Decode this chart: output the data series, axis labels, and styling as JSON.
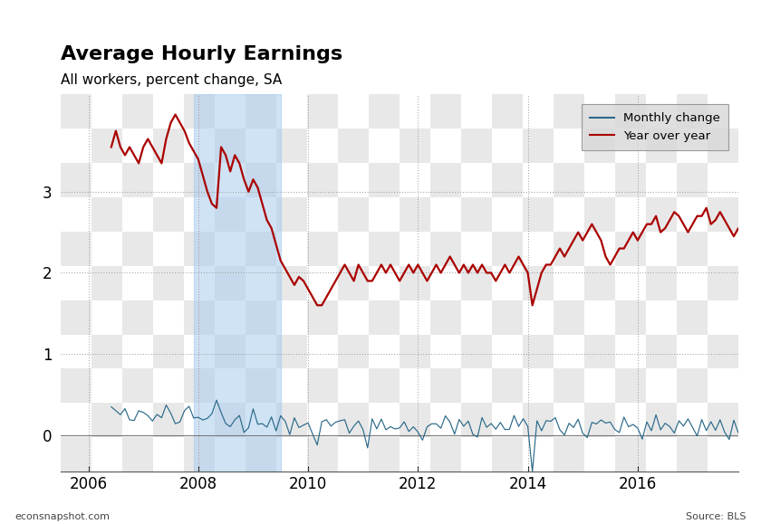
{
  "title": "Average Hourly Earnings",
  "subtitle": "All workers, percent change, SA",
  "footer_left": "econsnapshot.com",
  "footer_right": "Source: BLS",
  "legend_labels": [
    "Monthly change",
    "Year over year"
  ],
  "line_monthly_color": "#2b6a8a",
  "line_yoy_color": "#aa0000",
  "recession_start": 2007.917,
  "recession_end": 2009.5,
  "recession_color": "#aaccee",
  "recession_alpha": 0.55,
  "yticks": [
    0,
    1,
    2,
    3
  ],
  "ylim": [
    -0.45,
    4.2
  ],
  "xlim": [
    2005.5,
    2017.83
  ],
  "xticks": [
    2006,
    2008,
    2010,
    2012,
    2014,
    2016
  ],
  "grid_color": "#999999",
  "checker_light": "#e8e8e8",
  "checker_dark": "#ffffff",
  "yoy_t_start": 2006.417,
  "monthly_t_start": 2006.417,
  "yoy": [
    3.55,
    3.75,
    3.55,
    3.45,
    3.55,
    3.45,
    3.35,
    3.55,
    3.65,
    3.55,
    3.45,
    3.35,
    3.65,
    3.85,
    3.95,
    3.85,
    3.75,
    3.6,
    3.5,
    3.4,
    3.2,
    3.0,
    2.85,
    2.8,
    3.55,
    3.45,
    3.25,
    3.45,
    3.35,
    3.15,
    3.0,
    3.15,
    3.05,
    2.85,
    2.65,
    2.55,
    2.35,
    2.15,
    2.05,
    1.95,
    1.85,
    1.95,
    1.9,
    1.8,
    1.7,
    1.6,
    1.6,
    1.7,
    1.8,
    1.9,
    2.0,
    2.1,
    2.0,
    1.9,
    2.1,
    2.0,
    1.9,
    1.9,
    2.0,
    2.1,
    2.0,
    2.1,
    2.0,
    1.9,
    2.0,
    2.1,
    2.0,
    2.1,
    2.0,
    1.9,
    2.0,
    2.1,
    2.0,
    2.1,
    2.2,
    2.1,
    2.0,
    2.1,
    2.0,
    2.1,
    2.0,
    2.1,
    2.0,
    2.0,
    1.9,
    2.0,
    2.1,
    2.0,
    2.1,
    2.2,
    2.1,
    2.0,
    1.6,
    1.8,
    2.0,
    2.1,
    2.1,
    2.2,
    2.3,
    2.2,
    2.3,
    2.4,
    2.5,
    2.4,
    2.5,
    2.6,
    2.5,
    2.4,
    2.2,
    2.1,
    2.2,
    2.3,
    2.3,
    2.4,
    2.5,
    2.4,
    2.5,
    2.6,
    2.6,
    2.7,
    2.5,
    2.55,
    2.65,
    2.75,
    2.7,
    2.6,
    2.5,
    2.6,
    2.7,
    2.7,
    2.8,
    2.6,
    2.65,
    2.75,
    2.65,
    2.55,
    2.45,
    2.55,
    2.45,
    2.5
  ],
  "monthly": [
    0.28,
    0.32,
    0.25,
    0.31,
    0.22,
    0.18,
    0.3,
    0.35,
    0.2,
    0.15,
    0.28,
    0.22,
    0.35,
    0.28,
    0.15,
    0.22,
    0.28,
    0.35,
    0.2,
    0.28,
    0.12,
    0.2,
    0.28,
    0.35,
    0.28,
    0.2,
    0.12,
    0.28,
    0.2,
    0.05,
    0.12,
    0.28,
    0.2,
    0.12,
    0.18,
    0.25,
    0.1,
    0.18,
    0.1,
    0.02,
    0.18,
    0.1,
    0.1,
    0.18,
    0.08,
    -0.05,
    0.15,
    0.1,
    0.1,
    0.18,
    0.1,
    0.18,
    0.02,
    0.1,
    0.18,
    0.08,
    -0.1,
    0.18,
    0.08,
    0.15,
    0.08,
    0.18,
    0.08,
    0.02,
    0.18,
    0.08,
    0.15,
    0.08,
    -0.05,
    0.15,
    0.08,
    0.15,
    0.08,
    0.18,
    0.1,
    0.02,
    0.18,
    0.08,
    0.18,
    0.08,
    -0.05,
    0.18,
    0.08,
    0.18,
    0.08,
    0.18,
    0.08,
    0.02,
    0.18,
    0.08,
    0.18,
    0.08,
    -0.45,
    0.18,
    0.08,
    0.18,
    0.08,
    0.18,
    0.08,
    0.02,
    0.18,
    0.08,
    0.18,
    0.08,
    -0.05,
    0.18,
    0.08,
    0.18,
    0.08,
    0.18,
    0.08,
    0.02,
    0.18,
    0.08,
    0.18,
    0.08,
    -0.05,
    0.18,
    0.08,
    0.18,
    0.08,
    0.18,
    0.08,
    0.02,
    0.18,
    0.08,
    0.18,
    0.08,
    -0.05,
    0.18,
    0.08,
    0.18,
    0.08,
    0.18,
    0.08,
    0.02,
    0.18,
    0.08,
    0.18,
    0.08,
    0.18,
    0.08,
    0.28,
    -0.35
  ]
}
